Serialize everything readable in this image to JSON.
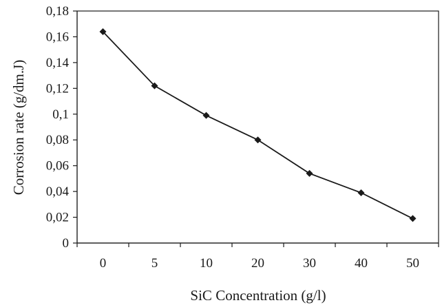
{
  "chart_data": {
    "type": "line",
    "categories": [
      "0",
      "5",
      "10",
      "20",
      "30",
      "40",
      "50"
    ],
    "series": [
      {
        "values": [
          0.164,
          0.122,
          0.099,
          0.08,
          0.054,
          0.039,
          0.019
        ],
        "marker": "diamond",
        "color": "#1a1a1a"
      }
    ],
    "xlabel": "SiC Concentration (g/l)",
    "ylabel": "Corrosion rate (g/dm.J)",
    "ylim": [
      0,
      0.18
    ],
    "ytick_values": [
      0,
      0.02,
      0.04,
      0.06,
      0.08,
      0.1,
      0.12,
      0.14,
      0.16,
      0.18
    ],
    "ytick_labels": [
      "0",
      "0,02",
      "0,04",
      "0,06",
      "0,08",
      "0,1",
      "0,12",
      "0,14",
      "0,16",
      "0,18"
    ],
    "grid": false,
    "legend": "none"
  }
}
